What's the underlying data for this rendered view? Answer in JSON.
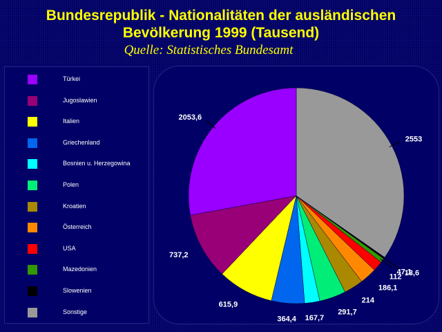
{
  "header": {
    "title_line1": "Bundesrepublik - Nationalitäten der ausländischen",
    "title_line2": "Bevölkerung 1999 (Tausend)",
    "subtitle": "Quelle:  Statistisches Bundesamt"
  },
  "chart_data": {
    "type": "pie",
    "title": "Bundesrepublik - Nationalitäten der ausländischen Bevölkerung 1999 (Tausend)",
    "subtitle": "Quelle:  Statistisches Bundesamt",
    "legend_position": "left",
    "start_angle_deg": 0,
    "direction": "clockwise",
    "slices": [
      {
        "name": "Sonstige",
        "value": 2553,
        "label": "2553",
        "color": "#999999"
      },
      {
        "name": "Slowenien",
        "value": 18.6,
        "label": "18,6",
        "color": "#000000"
      },
      {
        "name": "Mazedonien",
        "value": 47.1,
        "label": "47,1",
        "color": "#339900"
      },
      {
        "name": "USA",
        "value": 112,
        "label": "112",
        "color": "#ff0000"
      },
      {
        "name": "Österreich",
        "value": 186.1,
        "label": "186,1",
        "color": "#ff8800"
      },
      {
        "name": "Kroatien",
        "value": 214,
        "label": "214",
        "color": "#aa8800"
      },
      {
        "name": "Polen",
        "value": 291.7,
        "label": "291,7",
        "color": "#00ee77"
      },
      {
        "name": "Bosnien u. Herzegowina",
        "value": 167.7,
        "label": "167,7",
        "color": "#00ffff"
      },
      {
        "name": "Griechenland",
        "value": 364.4,
        "label": "364,4",
        "color": "#0066ee"
      },
      {
        "name": "Italien",
        "value": 615.9,
        "label": "615,9",
        "color": "#ffff00"
      },
      {
        "name": "Jugoslawien",
        "value": 737.2,
        "label": "737,2",
        "color": "#990077"
      },
      {
        "name": "Türkei",
        "value": 2053.6,
        "label": "2053,6",
        "color": "#9900ff"
      }
    ],
    "legend": [
      "Türkei",
      "Jugoslawien",
      "Italien",
      "Griechenland",
      "Bosnien u. Herzegowina",
      "Polen",
      "Kroatien",
      "Österreich",
      "USA",
      "Mazedonien",
      "Slowenien",
      "Sonstige"
    ]
  }
}
